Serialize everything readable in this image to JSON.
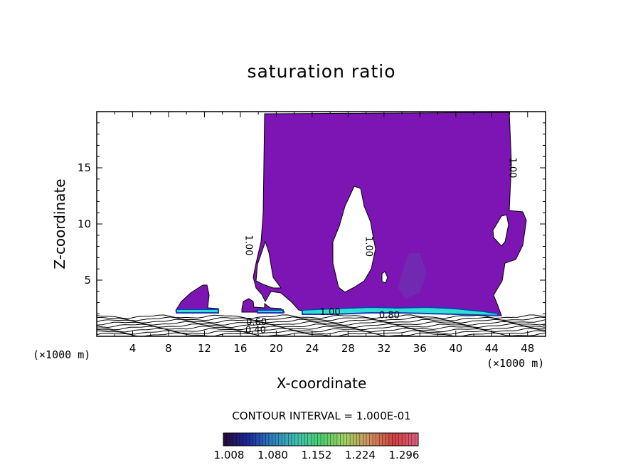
{
  "chart_data": {
    "type": "contour",
    "title": "saturation ratio",
    "xlabel": "X-coordinate",
    "ylabel": "Z-coordinate",
    "x_unit_label_left": "(×1000 m)",
    "x_unit_label_right": "(×1000 m)",
    "xlim": [
      0,
      50
    ],
    "ylim": [
      0,
      20
    ],
    "xticks": [
      4,
      8,
      12,
      16,
      20,
      24,
      28,
      32,
      36,
      40,
      44,
      48
    ],
    "yticks": [
      5,
      10,
      15
    ],
    "contour_labels": [
      {
        "text": "1.00",
        "x": 16.6,
        "z": 8.1,
        "rot": 90
      },
      {
        "text": "1.00",
        "x": 30.0,
        "z": 8.0,
        "rot": 90
      },
      {
        "text": "1.00",
        "x": 46.0,
        "z": 15.0,
        "rot": 90
      },
      {
        "text": "1.00",
        "x": 26.0,
        "z": 1.9,
        "rot": 0
      },
      {
        "text": "0.80",
        "x": 32.6,
        "z": 1.6,
        "rot": 0
      },
      {
        "text": "0.60",
        "x": 17.8,
        "z": 1.0,
        "rot": 0
      },
      {
        "text": "0.40",
        "x": 17.7,
        "z": 0.3,
        "rot": 0
      }
    ],
    "contour_interval_text": "CONTOUR INTERVAL = 1.000E-01",
    "colorbar": {
      "labels": [
        "1.008",
        "1.080",
        "1.152",
        "1.224",
        "1.296"
      ],
      "colors": [
        "#2a0a3a",
        "#1a2a9a",
        "#2f7fc0",
        "#3fc0b0",
        "#4fd070",
        "#a0d060",
        "#d09060",
        "#d04040",
        "#e06080"
      ]
    },
    "fill_color": "#7d14b4",
    "highlight_color": "#2ee0d0"
  }
}
